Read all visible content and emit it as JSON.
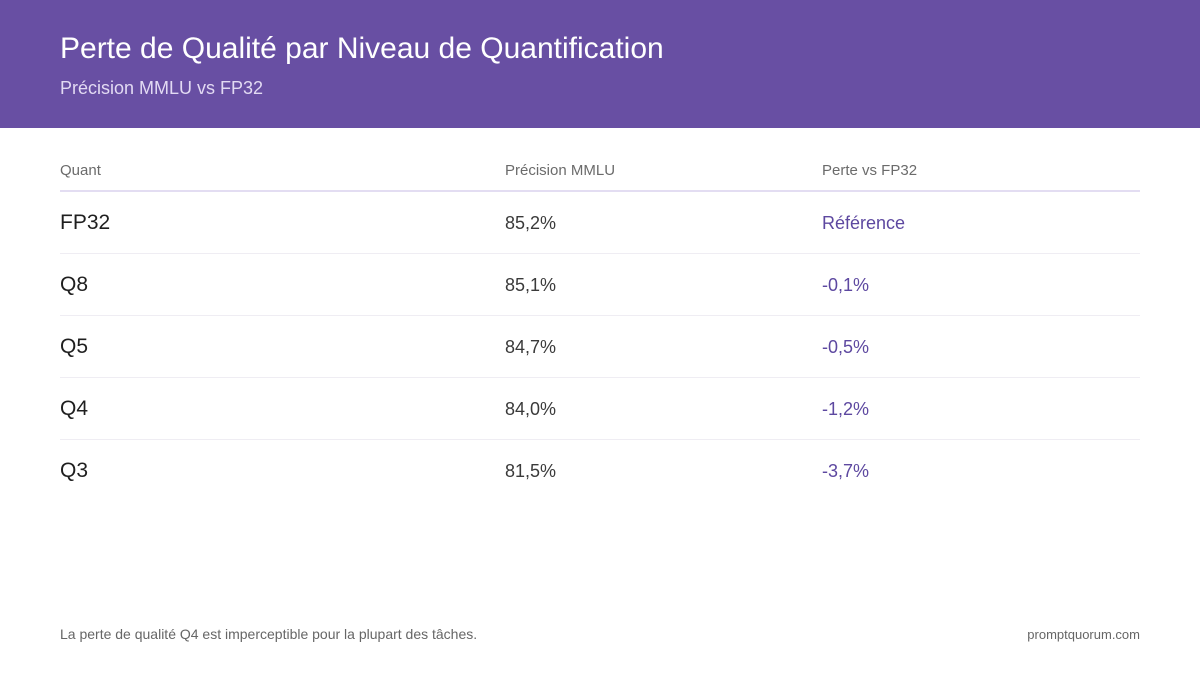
{
  "header": {
    "title": "Perte de Qualité par Niveau de Quantification",
    "subtitle": "Précision MMLU vs FP32"
  },
  "colors": {
    "header_bg": "#684fa3",
    "accent": "#5d48a0"
  },
  "chart_data": {
    "type": "table",
    "title": "Perte de Qualité par Niveau de Quantification",
    "subtitle": "Précision MMLU vs FP32",
    "columns": [
      "Quant",
      "Précision MMLU",
      "Perte vs FP32"
    ],
    "rows": [
      [
        "FP32",
        "85,2%",
        "Référence"
      ],
      [
        "Q8",
        "85,1%",
        "-0,1%"
      ],
      [
        "Q5",
        "84,7%",
        "-0,5%"
      ],
      [
        "Q4",
        "84,0%",
        "-1,2%"
      ],
      [
        "Q3",
        "81,5%",
        "-3,7%"
      ]
    ]
  },
  "footer": {
    "note": "La perte de qualité Q4 est imperceptible pour la plupart des tâches.",
    "source": "promptquorum.com"
  }
}
